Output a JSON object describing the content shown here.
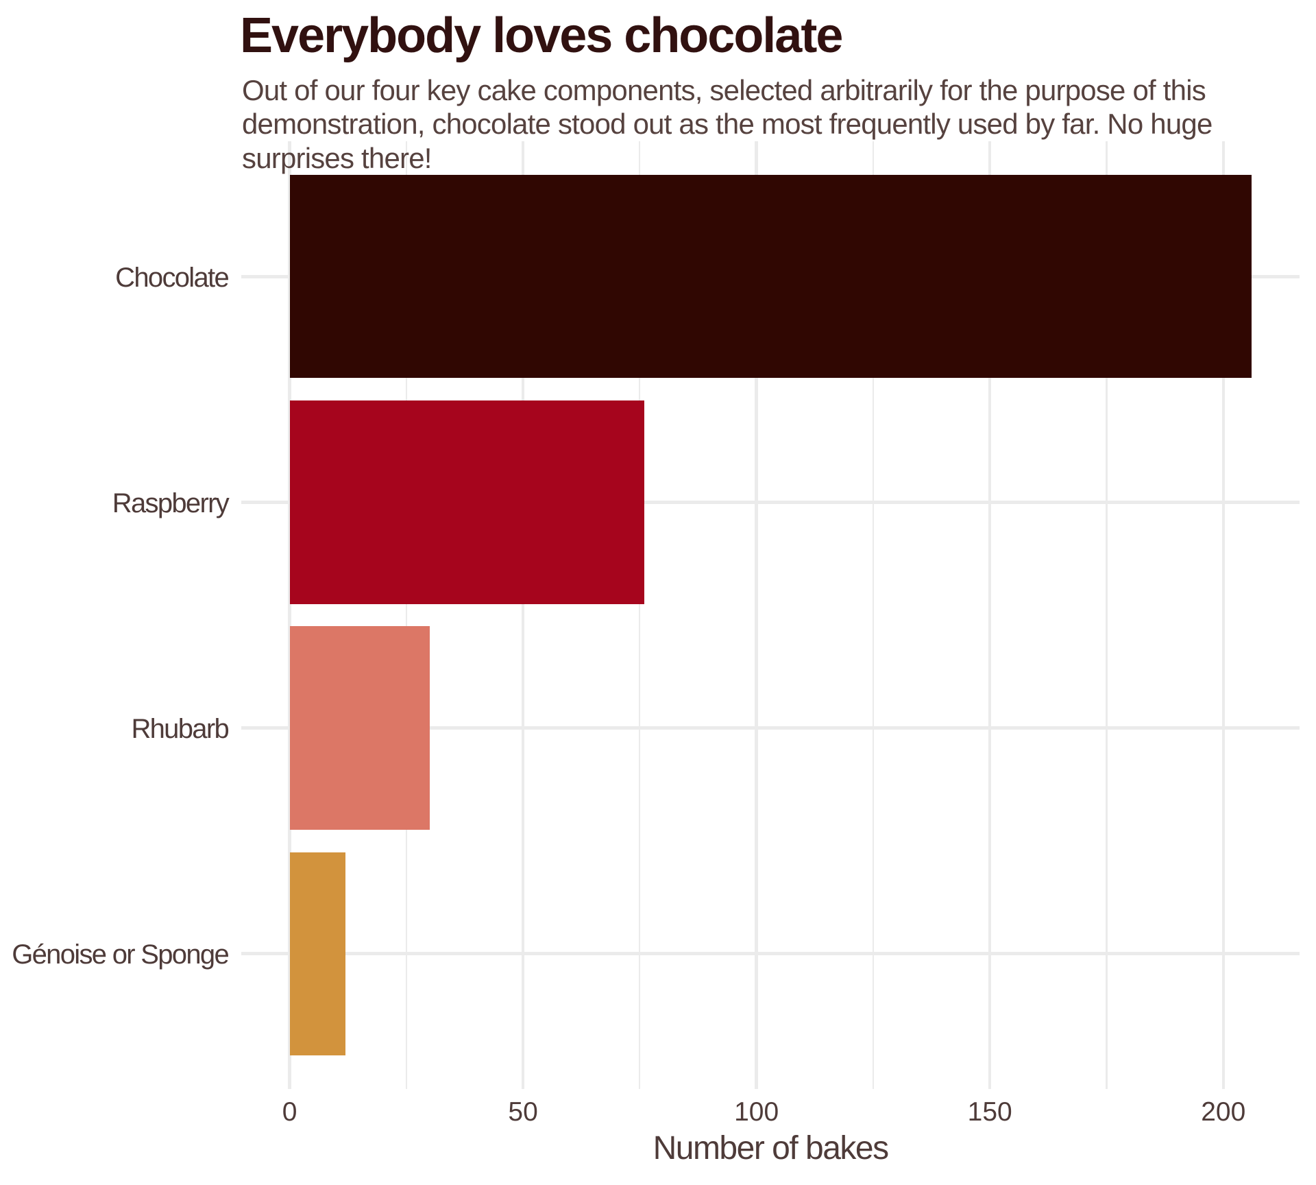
{
  "title": "Everybody loves chocolate",
  "subtitle_lines": [
    "Out of our four key cake components, selected arbitrarily for the purpose of this",
    "demonstration, chocolate stood out as the most frequently used by far. No huge",
    "surprises there!"
  ],
  "colors": {
    "background": "#ffffff",
    "title_text": "#311110",
    "subtitle_text": "#56423f",
    "axis_text": "#4e3b39",
    "gridline": "#ebebeb"
  },
  "chart_data": {
    "type": "bar",
    "orientation": "horizontal",
    "title": "Everybody loves chocolate",
    "subtitle": "Out of our four key cake components, selected arbitrarily for the purpose of this demonstration, chocolate stood out as the most frequently used by far. No huge surprises there!",
    "categories": [
      "Chocolate",
      "Raspberry",
      "Rhubarb",
      "Génoise or Sponge"
    ],
    "values": [
      206,
      76,
      30,
      12
    ],
    "bar_colors": [
      "#300702",
      "#a6051d",
      "#dc7766",
      "#d2933d"
    ],
    "xlabel": "Number of bakes",
    "ylabel": "",
    "xlim": [
      0,
      206
    ],
    "x_major_ticks": [
      0,
      50,
      100,
      150,
      200
    ],
    "x_minor_ticks": [
      25,
      75,
      125,
      175
    ],
    "grid": "on",
    "legend": "none"
  }
}
